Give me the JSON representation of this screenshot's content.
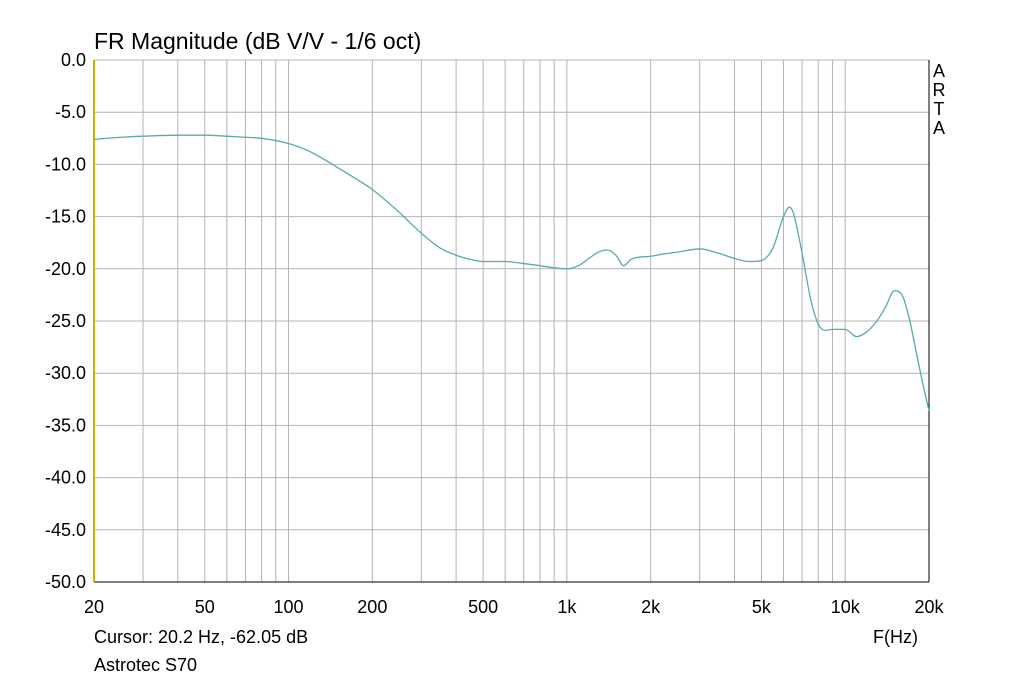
{
  "window_title": "FR Magnitude (dB V/V - 1/6 oct)",
  "cursor_readout": "Cursor: 20.2 Hz, -62.05 dB",
  "device_name": "Astrotec S70",
  "brand": [
    "A",
    "R",
    "T",
    "A"
  ],
  "colors": {
    "curve": "#5aa9b0",
    "grid": "#b4b4b4",
    "axis": "#c8b400",
    "frame": "#000000"
  },
  "chart_data": {
    "type": "line",
    "title": "FR Magnitude (dB V/V - 1/6 oct)",
    "xlabel": "F(Hz)",
    "ylabel": "",
    "x_scale": "log",
    "xlim": [
      20,
      20000
    ],
    "ylim": [
      -50,
      0
    ],
    "grid": true,
    "x_tick_labels": [
      "20",
      "50",
      "100",
      "200",
      "500",
      "1k",
      "2k",
      "5k",
      "10k",
      "20k"
    ],
    "x_tick_values": [
      20,
      50,
      100,
      200,
      500,
      1000,
      2000,
      5000,
      10000,
      20000
    ],
    "y_tick_labels": [
      "0.0",
      "-5.0",
      "-10.0",
      "-15.0",
      "-20.0",
      "-25.0",
      "-30.0",
      "-35.0",
      "-40.0",
      "-45.0",
      "-50.0"
    ],
    "y_tick_values": [
      0,
      -5,
      -10,
      -15,
      -20,
      -25,
      -30,
      -35,
      -40,
      -45,
      -50
    ],
    "series": [
      {
        "x": [
          20,
          25,
          30,
          40,
          50,
          60,
          70,
          80,
          100,
          120,
          150,
          180,
          200,
          250,
          300,
          350,
          400,
          450,
          500,
          550,
          600,
          700,
          800,
          900,
          1000,
          1100,
          1200,
          1300,
          1400,
          1500,
          1600,
          1700,
          1800,
          2000,
          2200,
          2500,
          3000,
          3500,
          4000,
          4500,
          5000,
          5500,
          6000,
          6300,
          6500,
          7000,
          7500,
          8000,
          8500,
          9000,
          10000,
          11000,
          12000,
          13000,
          14000,
          15000,
          16000,
          17000,
          18000,
          19000,
          20000
        ],
        "y": [
          -7.6,
          -7.4,
          -7.3,
          -7.2,
          -7.2,
          -7.3,
          -7.4,
          -7.5,
          -8.0,
          -8.8,
          -10.3,
          -11.6,
          -12.4,
          -14.6,
          -16.6,
          -18.0,
          -18.7,
          -19.1,
          -19.3,
          -19.3,
          -19.3,
          -19.5,
          -19.7,
          -19.9,
          -20.0,
          -19.7,
          -19.0,
          -18.4,
          -18.2,
          -18.7,
          -19.7,
          -19.1,
          -18.9,
          -18.8,
          -18.6,
          -18.4,
          -18.1,
          -18.5,
          -19.0,
          -19.3,
          -19.2,
          -18.0,
          -15.0,
          -14.1,
          -14.6,
          -18.5,
          -22.8,
          -25.3,
          -25.9,
          -25.8,
          -25.8,
          -26.5,
          -26.0,
          -25.0,
          -23.6,
          -22.1,
          -22.5,
          -24.8,
          -28.0,
          -31.0,
          -33.6
        ]
      }
    ]
  }
}
